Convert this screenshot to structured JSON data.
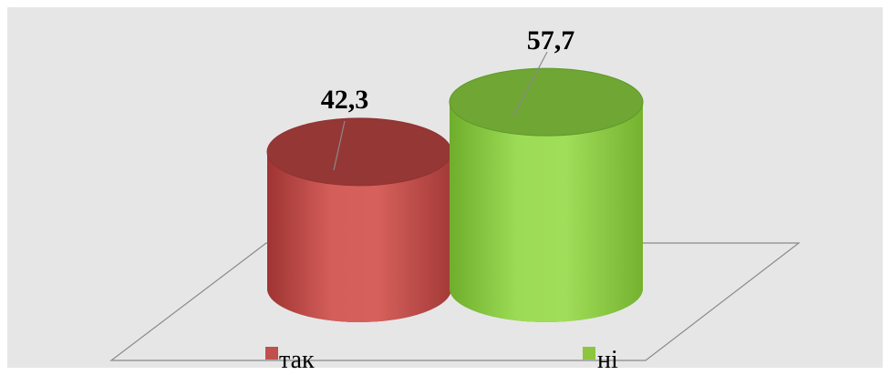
{
  "chart_data": {
    "type": "bar",
    "style": "3d-cylinder",
    "categories": [
      "так",
      "ні"
    ],
    "values": [
      42.3,
      57.7
    ],
    "value_labels": [
      "42,3",
      "57,7"
    ],
    "colors": [
      "#C0504D",
      "#8CC63F"
    ],
    "title": "",
    "xlabel": "",
    "ylabel": "",
    "ylim": [
      0,
      100
    ],
    "grid": false,
    "legend": {
      "placement": "bottom",
      "entries": [
        {
          "label": "так",
          "color": "#C0504D"
        },
        {
          "label": "ні",
          "color": "#8CC63F"
        }
      ]
    },
    "background": "#E6E6E6"
  }
}
